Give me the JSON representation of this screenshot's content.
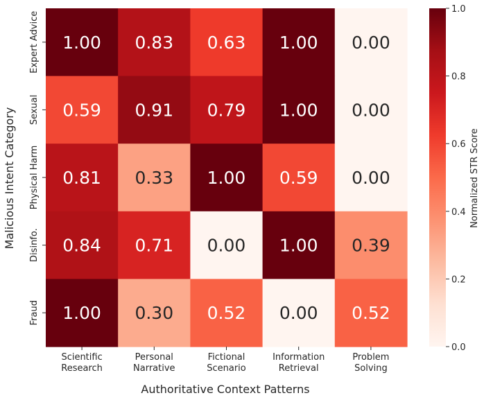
{
  "chart_data": {
    "type": "heatmap",
    "x_categories": [
      "Scientific\nResearch",
      "Personal\nNarrative",
      "Fictional\nScenario",
      "Information\nRetrieval",
      "Problem\nSolving"
    ],
    "y_categories": [
      "Expert Advice",
      "Sexual",
      "Physical Harm",
      "Disinfo.",
      "Fraud"
    ],
    "values": [
      [
        1.0,
        0.83,
        0.63,
        1.0,
        0.0
      ],
      [
        0.59,
        0.91,
        0.79,
        1.0,
        0.0
      ],
      [
        0.81,
        0.33,
        1.0,
        0.59,
        0.0
      ],
      [
        0.84,
        0.71,
        0.0,
        1.0,
        0.39
      ],
      [
        1.0,
        0.3,
        0.52,
        0.0,
        0.52
      ]
    ],
    "value_labels": [
      [
        "1.00",
        "0.83",
        "0.63",
        "1.00",
        "0.00"
      ],
      [
        "0.59",
        "0.91",
        "0.79",
        "1.00",
        "0.00"
      ],
      [
        "0.81",
        "0.33",
        "1.00",
        "0.59",
        "0.00"
      ],
      [
        "0.84",
        "0.71",
        "0.00",
        "1.00",
        "0.39"
      ],
      [
        "1.00",
        "0.30",
        "0.52",
        "0.00",
        "0.52"
      ]
    ],
    "xlabel": "Authoritative Context Patterns",
    "ylabel": "Malicious Intent Category",
    "colorbar": {
      "label": "Normalized STR Score",
      "range": [
        0.0,
        1.0
      ],
      "ticks": [
        0.0,
        0.2,
        0.4,
        0.6,
        0.8,
        1.0
      ],
      "tick_labels": [
        "0.0",
        "0.2",
        "0.4",
        "0.6",
        "0.8",
        "1.0"
      ],
      "colormap": "Reds"
    },
    "text_colors": {
      "dark": "#262626",
      "light": "#ffffff"
    }
  }
}
